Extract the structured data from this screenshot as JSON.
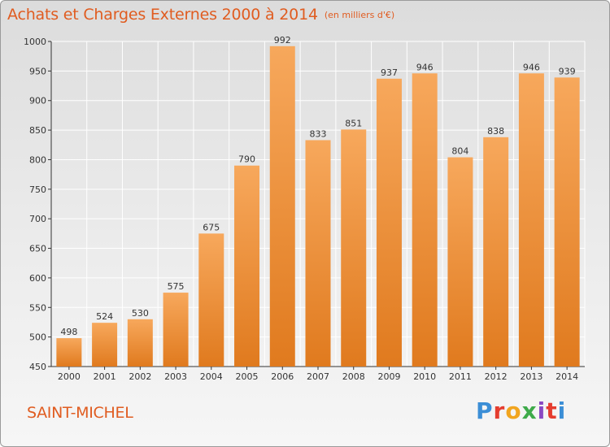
{
  "header": {
    "title": "Achats et Charges Externes 2000 à 2014",
    "unit": "(en milliers d'€)"
  },
  "footer": {
    "location": "SAINT-MICHEL",
    "logo_text": "Proxiti"
  },
  "colors": {
    "bar_light": "#f7a85c",
    "bar_dark": "#e07a1e",
    "title": "#e05c20",
    "grid": "#ffffff",
    "axis": "#333333"
  },
  "chart_data": {
    "type": "bar",
    "title": "Achats et Charges Externes 2000 à 2014",
    "subtitle": "(en milliers d'€)",
    "xlabel": "",
    "ylabel": "",
    "categories": [
      "2000",
      "2001",
      "2002",
      "2003",
      "2004",
      "2005",
      "2006",
      "2007",
      "2008",
      "2009",
      "2010",
      "2011",
      "2012",
      "2013",
      "2014"
    ],
    "values": [
      498,
      524,
      530,
      575,
      675,
      790,
      992,
      833,
      851,
      937,
      946,
      804,
      838,
      946,
      939
    ],
    "ylim": [
      450,
      1000
    ],
    "yticks": [
      450,
      500,
      550,
      600,
      650,
      700,
      750,
      800,
      850,
      900,
      950,
      1000
    ],
    "grid": true,
    "data_labels": true
  }
}
